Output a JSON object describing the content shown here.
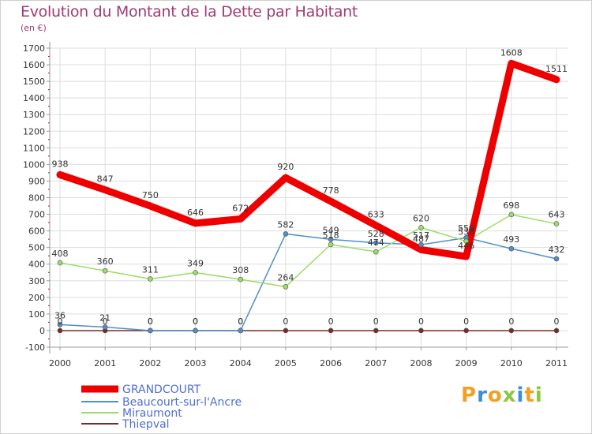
{
  "title": "Evolution du Montant de la Dette par Habitant",
  "unit": "(en €)",
  "brand": {
    "letters": [
      "P",
      "r",
      "o",
      "x",
      "i",
      "t",
      "i"
    ],
    "colors": [
      "#f2a023",
      "#3b8fd8",
      "#f2a023",
      "#8dc63f",
      "#3b8fd8",
      "#f2a023",
      "#8dc63f"
    ]
  },
  "chart_data": {
    "type": "line",
    "title": "Evolution du Montant de la Dette par Habitant",
    "ylabel": "(en €)",
    "xlabel": "",
    "x": [
      "2000",
      "2001",
      "2002",
      "2003",
      "2004",
      "2005",
      "2006",
      "2007",
      "2008",
      "2009",
      "2010",
      "2011"
    ],
    "ylim": [
      -100,
      1700
    ],
    "yticks": [
      -100,
      0,
      100,
      200,
      300,
      400,
      500,
      600,
      700,
      800,
      900,
      1000,
      1100,
      1200,
      1300,
      1400,
      1500,
      1600,
      1700
    ],
    "grid": true,
    "legend_position": "bottom-left",
    "series": [
      {
        "name": "GRANDCOURT",
        "color": "#ee0000",
        "values": [
          938,
          847,
          750,
          646,
          672,
          920,
          778,
          633,
          487,
          446,
          1608,
          1511
        ]
      },
      {
        "name": "Beaucourt-sur-l'Ancre",
        "color": "#4f8fc9",
        "values": [
          36,
          21,
          0,
          0,
          0,
          582,
          549,
          528,
          517,
          559,
          493,
          432
        ]
      },
      {
        "name": "Miraumont",
        "color": "#99dd66",
        "values": [
          408,
          360,
          311,
          349,
          308,
          264,
          518,
          474,
          620,
          538,
          698,
          643
        ]
      },
      {
        "name": "Thiepval",
        "color": "#7a2a2a",
        "values": [
          0,
          0,
          0,
          0,
          0,
          0,
          0,
          0,
          0,
          0,
          0,
          0
        ]
      }
    ]
  }
}
